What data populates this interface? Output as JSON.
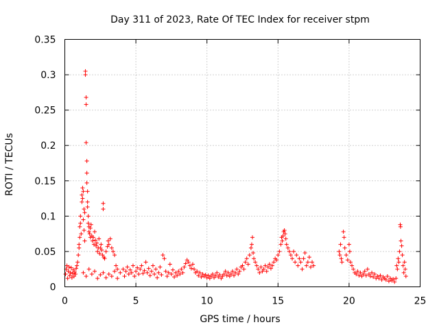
{
  "chart_data": {
    "type": "scatter",
    "title": "Day 311 of 2023, Rate Of TEC Index for receiver stpm",
    "xlabel": "GPS time / hours",
    "ylabel": "ROTI / TECUs",
    "xlim": [
      0,
      25
    ],
    "ylim": [
      0,
      0.35
    ],
    "xticks": [
      "0",
      "5",
      "10",
      "15",
      "20",
      "25"
    ],
    "yticks": [
      "0",
      "0.05",
      "0.1",
      "0.15",
      "0.2",
      "0.25",
      "0.3",
      "0.35"
    ],
    "xtick_values": [
      0,
      5,
      10,
      15,
      20,
      25
    ],
    "ytick_values": [
      0,
      0.05,
      0.1,
      0.15,
      0.2,
      0.25,
      0.3,
      0.35
    ],
    "grid": true,
    "marker": "+",
    "color": "#ff0000",
    "series": [
      {
        "points": [
          [
            0.05,
            0.018
          ],
          [
            0.1,
            0.025
          ],
          [
            0.15,
            0.03
          ],
          [
            0.2,
            0.012
          ],
          [
            0.25,
            0.022
          ],
          [
            0.3,
            0.028
          ],
          [
            0.35,
            0.016
          ],
          [
            0.4,
            0.02
          ],
          [
            0.45,
            0.027
          ],
          [
            0.5,
            0.013
          ],
          [
            0.55,
            0.019
          ],
          [
            0.6,
            0.024
          ],
          [
            0.65,
            0.015
          ],
          [
            0.7,
            0.021
          ],
          [
            0.75,
            0.018
          ],
          [
            0.8,
            0.026
          ],
          [
            0.85,
            0.03
          ],
          [
            0.9,
            0.035
          ],
          [
            0.95,
            0.045
          ],
          [
            1.0,
            0.055
          ],
          [
            1.0,
            0.06
          ],
          [
            1.05,
            0.07
          ],
          [
            1.05,
            0.085
          ],
          [
            1.1,
            0.09
          ],
          [
            1.1,
            0.1
          ],
          [
            1.15,
            0.075
          ],
          [
            1.2,
            0.12
          ],
          [
            1.2,
            0.13
          ],
          [
            1.25,
            0.14
          ],
          [
            1.25,
            0.125
          ],
          [
            1.3,
            0.135
          ],
          [
            1.3,
            0.095
          ],
          [
            1.35,
            0.11
          ],
          [
            1.35,
            0.08
          ],
          [
            1.4,
            0.065
          ],
          [
            1.4,
            0.105
          ],
          [
            1.45,
            0.3
          ],
          [
            1.45,
            0.305
          ],
          [
            1.5,
            0.268
          ],
          [
            1.5,
            0.258
          ],
          [
            1.5,
            0.204
          ],
          [
            1.55,
            0.178
          ],
          [
            1.55,
            0.161
          ],
          [
            1.55,
            0.147
          ],
          [
            1.6,
            0.135
          ],
          [
            1.6,
            0.12
          ],
          [
            1.6,
            0.113
          ],
          [
            1.65,
            0.1
          ],
          [
            1.65,
            0.09
          ],
          [
            1.7,
            0.085
          ],
          [
            1.7,
            0.078
          ],
          [
            1.75,
            0.075
          ],
          [
            1.8,
            0.07
          ],
          [
            1.8,
            0.083
          ],
          [
            1.85,
            0.088
          ],
          [
            1.9,
            0.072
          ],
          [
            1.95,
            0.065
          ],
          [
            2.0,
            0.07
          ],
          [
            2.05,
            0.06
          ],
          [
            2.1,
            0.078
          ],
          [
            2.15,
            0.066
          ],
          [
            2.2,
            0.058
          ],
          [
            2.25,
            0.062
          ],
          [
            2.3,
            0.05
          ],
          [
            2.35,
            0.055
          ],
          [
            2.4,
            0.068
          ],
          [
            2.45,
            0.047
          ],
          [
            2.5,
            0.055
          ],
          [
            2.55,
            0.06
          ],
          [
            2.6,
            0.052
          ],
          [
            2.65,
            0.045
          ],
          [
            2.7,
            0.118
          ],
          [
            2.7,
            0.11
          ],
          [
            2.75,
            0.042
          ],
          [
            2.8,
            0.04
          ],
          [
            2.9,
            0.05
          ],
          [
            3.0,
            0.057
          ],
          [
            3.05,
            0.065
          ],
          [
            3.1,
            0.06
          ],
          [
            3.2,
            0.068
          ],
          [
            3.3,
            0.055
          ],
          [
            3.4,
            0.05
          ],
          [
            3.5,
            0.045
          ],
          [
            3.6,
            0.03
          ],
          [
            3.7,
            0.025
          ],
          [
            1.3,
            0.02
          ],
          [
            1.5,
            0.015
          ],
          [
            1.7,
            0.025
          ],
          [
            1.9,
            0.018
          ],
          [
            2.1,
            0.022
          ],
          [
            2.3,
            0.012
          ],
          [
            2.5,
            0.017
          ],
          [
            2.7,
            0.02
          ],
          [
            2.9,
            0.013
          ],
          [
            3.1,
            0.018
          ],
          [
            3.3,
            0.015
          ],
          [
            3.5,
            0.022
          ],
          [
            3.7,
            0.012
          ],
          [
            3.9,
            0.02
          ],
          [
            4.1,
            0.025
          ],
          [
            4.2,
            0.015
          ],
          [
            4.3,
            0.022
          ],
          [
            4.4,
            0.028
          ],
          [
            4.5,
            0.018
          ],
          [
            4.6,
            0.024
          ],
          [
            4.7,
            0.02
          ],
          [
            4.8,
            0.03
          ],
          [
            4.9,
            0.015
          ],
          [
            5.0,
            0.022
          ],
          [
            5.1,
            0.027
          ],
          [
            5.2,
            0.018
          ],
          [
            5.3,
            0.025
          ],
          [
            5.4,
            0.03
          ],
          [
            5.5,
            0.019
          ],
          [
            5.6,
            0.023
          ],
          [
            5.7,
            0.035
          ],
          [
            5.8,
            0.02
          ],
          [
            5.9,
            0.026
          ],
          [
            6.0,
            0.016
          ],
          [
            6.1,
            0.022
          ],
          [
            6.2,
            0.03
          ],
          [
            6.3,
            0.018
          ],
          [
            6.4,
            0.025
          ],
          [
            6.5,
            0.013
          ],
          [
            6.6,
            0.02
          ],
          [
            6.7,
            0.028
          ],
          [
            6.8,
            0.017
          ],
          [
            6.9,
            0.045
          ],
          [
            7.0,
            0.04
          ],
          [
            7.1,
            0.022
          ],
          [
            7.2,
            0.015
          ],
          [
            7.3,
            0.02
          ],
          [
            7.4,
            0.032
          ],
          [
            7.5,
            0.018
          ],
          [
            7.6,
            0.024
          ],
          [
            7.7,
            0.014
          ],
          [
            7.8,
            0.02
          ],
          [
            7.9,
            0.016
          ],
          [
            8.0,
            0.022
          ],
          [
            8.1,
            0.018
          ],
          [
            8.2,
            0.025
          ],
          [
            8.3,
            0.02
          ],
          [
            8.4,
            0.028
          ],
          [
            8.5,
            0.033
          ],
          [
            8.6,
            0.038
          ],
          [
            8.7,
            0.035
          ],
          [
            8.8,
            0.03
          ],
          [
            8.9,
            0.026
          ],
          [
            9.0,
            0.032
          ],
          [
            9.1,
            0.025
          ],
          [
            9.2,
            0.02
          ],
          [
            9.3,
            0.022
          ],
          [
            9.4,
            0.016
          ],
          [
            9.5,
            0.02
          ],
          [
            9.6,
            0.014
          ],
          [
            9.7,
            0.018
          ],
          [
            9.8,
            0.015
          ],
          [
            9.9,
            0.017
          ],
          [
            10.0,
            0.013
          ],
          [
            10.1,
            0.016
          ],
          [
            10.2,
            0.012
          ],
          [
            10.3,
            0.015
          ],
          [
            10.4,
            0.018
          ],
          [
            10.5,
            0.013
          ],
          [
            10.6,
            0.016
          ],
          [
            10.7,
            0.02
          ],
          [
            10.8,
            0.014
          ],
          [
            10.9,
            0.017
          ],
          [
            11.0,
            0.012
          ],
          [
            11.1,
            0.015
          ],
          [
            11.2,
            0.018
          ],
          [
            11.3,
            0.022
          ],
          [
            11.4,
            0.016
          ],
          [
            11.5,
            0.02
          ],
          [
            11.6,
            0.015
          ],
          [
            11.7,
            0.018
          ],
          [
            11.8,
            0.022
          ],
          [
            11.9,
            0.016
          ],
          [
            12.0,
            0.02
          ],
          [
            12.1,
            0.025
          ],
          [
            12.2,
            0.018
          ],
          [
            12.3,
            0.022
          ],
          [
            12.4,
            0.028
          ],
          [
            12.5,
            0.03
          ],
          [
            12.6,
            0.025
          ],
          [
            12.7,
            0.035
          ],
          [
            12.8,
            0.04
          ],
          [
            12.9,
            0.032
          ],
          [
            13.0,
            0.045
          ],
          [
            13.1,
            0.055
          ],
          [
            13.15,
            0.06
          ],
          [
            13.2,
            0.07
          ],
          [
            13.25,
            0.048
          ],
          [
            13.3,
            0.04
          ],
          [
            13.4,
            0.035
          ],
          [
            13.5,
            0.03
          ],
          [
            13.6,
            0.025
          ],
          [
            13.7,
            0.02
          ],
          [
            13.8,
            0.028
          ],
          [
            13.9,
            0.022
          ],
          [
            14.0,
            0.025
          ],
          [
            14.1,
            0.03
          ],
          [
            14.2,
            0.022
          ],
          [
            14.3,
            0.028
          ],
          [
            14.4,
            0.032
          ],
          [
            14.5,
            0.026
          ],
          [
            14.6,
            0.03
          ],
          [
            14.7,
            0.035
          ],
          [
            14.8,
            0.04
          ],
          [
            14.9,
            0.038
          ],
          [
            15.0,
            0.045
          ],
          [
            15.1,
            0.05
          ],
          [
            15.2,
            0.06
          ],
          [
            15.25,
            0.07
          ],
          [
            15.3,
            0.065
          ],
          [
            15.35,
            0.072
          ],
          [
            15.4,
            0.078
          ],
          [
            15.45,
            0.08
          ],
          [
            15.5,
            0.075
          ],
          [
            15.55,
            0.068
          ],
          [
            15.6,
            0.06
          ],
          [
            15.7,
            0.055
          ],
          [
            15.8,
            0.05
          ],
          [
            15.9,
            0.045
          ],
          [
            16.0,
            0.04
          ],
          [
            16.1,
            0.05
          ],
          [
            16.2,
            0.035
          ],
          [
            16.3,
            0.045
          ],
          [
            16.4,
            0.03
          ],
          [
            16.5,
            0.04
          ],
          [
            16.6,
            0.035
          ],
          [
            16.7,
            0.025
          ],
          [
            16.8,
            0.04
          ],
          [
            16.9,
            0.048
          ],
          [
            17.0,
            0.03
          ],
          [
            17.1,
            0.035
          ],
          [
            17.2,
            0.042
          ],
          [
            17.3,
            0.028
          ],
          [
            17.4,
            0.035
          ],
          [
            17.5,
            0.03
          ],
          [
            19.3,
            0.05
          ],
          [
            19.35,
            0.045
          ],
          [
            19.4,
            0.06
          ],
          [
            19.45,
            0.04
          ],
          [
            19.5,
            0.035
          ],
          [
            19.6,
            0.078
          ],
          [
            19.65,
            0.07
          ],
          [
            19.7,
            0.055
          ],
          [
            19.8,
            0.045
          ],
          [
            19.9,
            0.038
          ],
          [
            20.0,
            0.06
          ],
          [
            20.05,
            0.05
          ],
          [
            20.1,
            0.035
          ],
          [
            20.2,
            0.03
          ],
          [
            20.3,
            0.025
          ],
          [
            20.4,
            0.02
          ],
          [
            20.5,
            0.018
          ],
          [
            20.6,
            0.022
          ],
          [
            20.7,
            0.016
          ],
          [
            20.8,
            0.02
          ],
          [
            20.9,
            0.015
          ],
          [
            21.0,
            0.018
          ],
          [
            21.1,
            0.022
          ],
          [
            21.2,
            0.016
          ],
          [
            21.3,
            0.025
          ],
          [
            21.4,
            0.018
          ],
          [
            21.5,
            0.015
          ],
          [
            21.6,
            0.02
          ],
          [
            21.7,
            0.014
          ],
          [
            21.8,
            0.018
          ],
          [
            21.9,
            0.012
          ],
          [
            22.0,
            0.015
          ],
          [
            22.1,
            0.012
          ],
          [
            22.2,
            0.016
          ],
          [
            22.3,
            0.01
          ],
          [
            22.4,
            0.014
          ],
          [
            22.5,
            0.012
          ],
          [
            22.6,
            0.01
          ],
          [
            22.7,
            0.015
          ],
          [
            22.8,
            0.008
          ],
          [
            22.9,
            0.012
          ],
          [
            23.0,
            0.009
          ],
          [
            23.1,
            0.011
          ],
          [
            23.2,
            0.007
          ],
          [
            23.3,
            0.012
          ],
          [
            23.35,
            0.03
          ],
          [
            23.4,
            0.025
          ],
          [
            23.45,
            0.04
          ],
          [
            23.5,
            0.035
          ],
          [
            23.55,
            0.05
          ],
          [
            23.6,
            0.088
          ],
          [
            23.62,
            0.085
          ],
          [
            23.65,
            0.065
          ],
          [
            23.7,
            0.058
          ],
          [
            23.75,
            0.045
          ],
          [
            23.8,
            0.03
          ],
          [
            23.85,
            0.02
          ],
          [
            23.9,
            0.035
          ],
          [
            23.95,
            0.025
          ],
          [
            24.0,
            0.015
          ]
        ]
      }
    ]
  }
}
